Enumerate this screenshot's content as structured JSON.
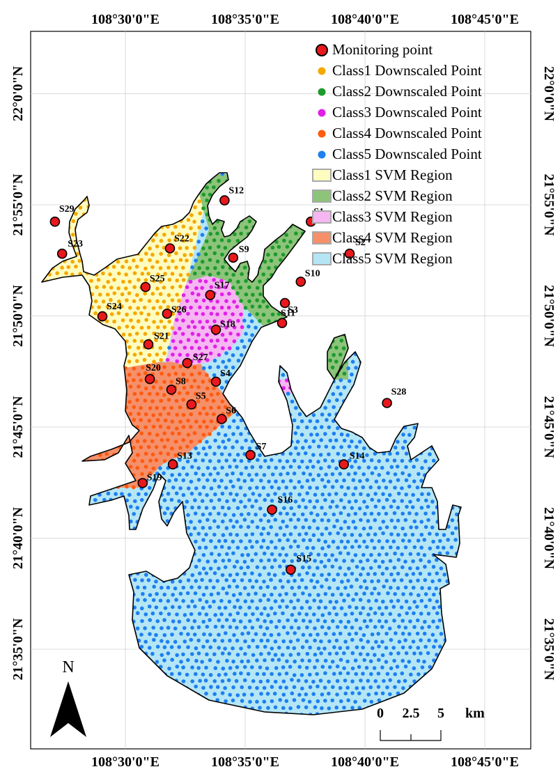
{
  "map": {
    "lon_ticks": [
      "108°30'0\"E",
      "108°35'0\"E",
      "108°40'0\"E",
      "108°45'0\"E"
    ],
    "lat_ticks": [
      "22°0'0\"N",
      "21°55'0\"N",
      "21°50'0\"N",
      "21°45'0\"N",
      "21°40'0\"N",
      "21°35'0\"N"
    ],
    "north_label": "N",
    "scale_labels": [
      "0",
      "2.5",
      "5",
      "km"
    ],
    "colors": {
      "class1": "#f5a800",
      "class2": "#1e9a2e",
      "class3": "#e020e8",
      "class4": "#ff5a10",
      "class5": "#1e7ff0",
      "region1": "#fffcc0",
      "region2": "#8cc47a",
      "region3": "#f6b6f2",
      "region4": "#f5906a",
      "region5": "#b4e6f6",
      "monitor_fill": "#e8181c"
    }
  },
  "legend": {
    "items": [
      {
        "label": "Monitoring point",
        "kind": "monitor"
      },
      {
        "label": "Class1 Downscaled Point",
        "kind": "dot",
        "color": "#f5a800"
      },
      {
        "label": "Class2 Downscaled Point",
        "kind": "dot",
        "color": "#1e9a2e"
      },
      {
        "label": "Class3 Downscaled Point",
        "kind": "dot",
        "color": "#e020e8"
      },
      {
        "label": "Class4 Downscaled Point",
        "kind": "dot",
        "color": "#ff5a10"
      },
      {
        "label": "Class5 Downscaled Point",
        "kind": "dot",
        "color": "#1e7ff0"
      },
      {
        "label": "Class1 SVM Region",
        "kind": "box",
        "color": "#fffcc0"
      },
      {
        "label": "Class2 SVM Region",
        "kind": "box",
        "color": "#8cc47a"
      },
      {
        "label": "Class3 SVM Region",
        "kind": "box",
        "color": "#f6b6f2"
      },
      {
        "label": "Class4 SVM Region",
        "kind": "box",
        "color": "#f5906a"
      },
      {
        "label": "Class5 SVM Region",
        "kind": "box",
        "color": "#b4e6f6"
      }
    ]
  },
  "stations": [
    {
      "id": "S1",
      "lon": 108.629,
      "lat": 21.904
    },
    {
      "id": "S2",
      "lon": 108.656,
      "lat": 21.88
    },
    {
      "id": "S3",
      "lon": 108.611,
      "lat": 21.843
    },
    {
      "id": "S4",
      "lon": 108.563,
      "lat": 21.784
    },
    {
      "id": "S5",
      "lon": 108.546,
      "lat": 21.767
    },
    {
      "id": "S6",
      "lon": 108.567,
      "lat": 21.756
    },
    {
      "id": "S7",
      "lon": 108.587,
      "lat": 21.729
    },
    {
      "id": "S8",
      "lon": 108.532,
      "lat": 21.778
    },
    {
      "id": "S9",
      "lon": 108.575,
      "lat": 21.877
    },
    {
      "id": "S10",
      "lon": 108.622,
      "lat": 21.859
    },
    {
      "id": "S11",
      "lon": 108.609,
      "lat": 21.828
    },
    {
      "id": "S12",
      "lon": 108.569,
      "lat": 21.92
    },
    {
      "id": "S13",
      "lon": 108.533,
      "lat": 21.722
    },
    {
      "id": "S14",
      "lon": 108.652,
      "lat": 21.722
    },
    {
      "id": "S15",
      "lon": 108.615,
      "lat": 21.643
    },
    {
      "id": "S16",
      "lon": 108.602,
      "lat": 21.688
    },
    {
      "id": "S17",
      "lon": 108.559,
      "lat": 21.849
    },
    {
      "id": "S18",
      "lon": 108.563,
      "lat": 21.823
    },
    {
      "id": "S19",
      "lon": 108.512,
      "lat": 21.708
    },
    {
      "id": "S20",
      "lon": 108.517,
      "lat": 21.786
    },
    {
      "id": "S21",
      "lon": 108.516,
      "lat": 21.812
    },
    {
      "id": "S22",
      "lon": 108.531,
      "lat": 21.884
    },
    {
      "id": "S23",
      "lon": 108.456,
      "lat": 21.88
    },
    {
      "id": "S24",
      "lon": 108.484,
      "lat": 21.833
    },
    {
      "id": "S25",
      "lon": 108.514,
      "lat": 21.855
    },
    {
      "id": "S26",
      "lon": 108.529,
      "lat": 21.835
    },
    {
      "id": "S27",
      "lon": 108.543,
      "lat": 21.798
    },
    {
      "id": "S28",
      "lon": 108.682,
      "lat": 21.768
    },
    {
      "id": "S29",
      "lon": 108.451,
      "lat": 21.904
    }
  ]
}
